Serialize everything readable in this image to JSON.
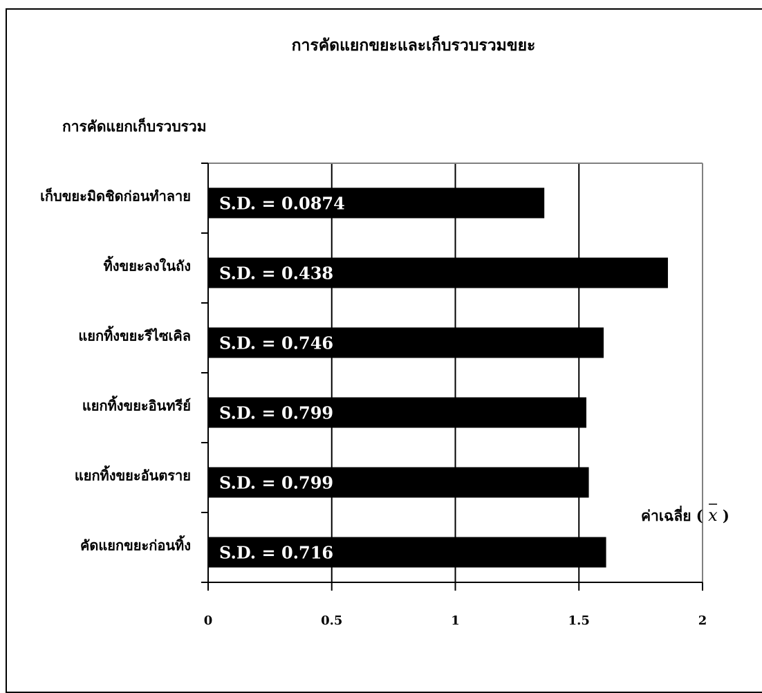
{
  "chart_data": {
    "type": "bar",
    "orientation": "horizontal",
    "title": "การคัดแยกขยะและเก็บรวบรวมขยะ",
    "ylabel": "การคัดแยกเก็บรวบรวม",
    "xlabel": "ค่าเฉลี่ย ( x )",
    "xlabel_symbol": "x",
    "xlim": [
      0,
      2
    ],
    "xticks": [
      "0",
      "0.5",
      "1",
      "1.5",
      "2"
    ],
    "grid": true,
    "categories": [
      "เก็บขยะมิดชิดก่อนทำลาย",
      "ทิ้งขยะลงในถัง",
      "แยกทิ้งขยะรีไซเคิล",
      "แยกทิ้งขยะอินทรีย์",
      "แยกทิ้งขยะอันตราย",
      "คัดแยกขยะก่อนทิ้ง"
    ],
    "values": [
      1.36,
      1.86,
      1.6,
      1.53,
      1.54,
      1.61
    ],
    "data_labels": [
      "S.D. = 0.0874",
      "S.D. = 0.438",
      "S.D. = 0.746",
      "S.D. = 0.799",
      "S.D. = 0.799",
      "S.D. = 0.716"
    ],
    "colors": {
      "bar": "#000000",
      "label": "#ffffff",
      "grid": "#000000",
      "plot_border": "#808080"
    }
  }
}
